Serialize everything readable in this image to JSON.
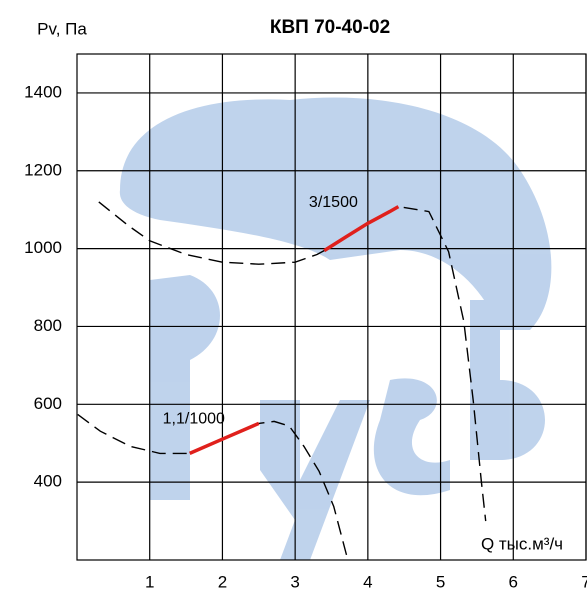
{
  "chart_data": {
    "type": "line",
    "title": "КВП 70-40-02",
    "y_label": "Pv, Па",
    "x_label": "Q тыс.м³/ч",
    "xlim": [
      0,
      7
    ],
    "xticks": [
      1,
      2,
      3,
      4,
      5,
      6,
      7
    ],
    "ylim": [
      200,
      1500
    ],
    "yticks": [
      400,
      600,
      800,
      1000,
      1200,
      1400
    ],
    "grid": true,
    "series": [
      {
        "name": "3/1500",
        "color": "#000000",
        "dashed": true,
        "x": [
          0.3,
          0.7,
          1.0,
          1.5,
          2.0,
          2.5,
          3.0,
          3.3,
          3.5,
          3.8,
          4.1,
          4.42,
          4.84,
          5.11,
          5.32,
          5.45,
          5.56,
          5.62
        ],
        "values": [
          1120,
          1060,
          1020,
          985,
          965,
          960,
          965,
          985,
          1005,
          1040,
          1075,
          1108,
          1095,
          992,
          813,
          608,
          403,
          300
        ],
        "highlight": {
          "color": "#e0201c",
          "x": [
            3.4,
            3.7,
            4.0,
            4.3,
            4.42
          ],
          "values": [
            995,
            1030,
            1065,
            1095,
            1108
          ]
        }
      },
      {
        "name": "1,1/1000",
        "color": "#000000",
        "dashed": true,
        "x": [
          0.01,
          0.32,
          0.73,
          1.14,
          1.55,
          2.03,
          2.5,
          2.71,
          2.92,
          3.12,
          3.33,
          3.53,
          3.71
        ],
        "values": [
          574,
          531,
          492,
          474,
          474,
          513,
          551,
          556,
          544,
          492,
          428,
          338,
          210
        ],
        "highlight": {
          "color": "#e0201c",
          "x": [
            1.55,
            2.03,
            2.5
          ],
          "values": [
            474,
            513,
            551
          ]
        }
      }
    ]
  }
}
